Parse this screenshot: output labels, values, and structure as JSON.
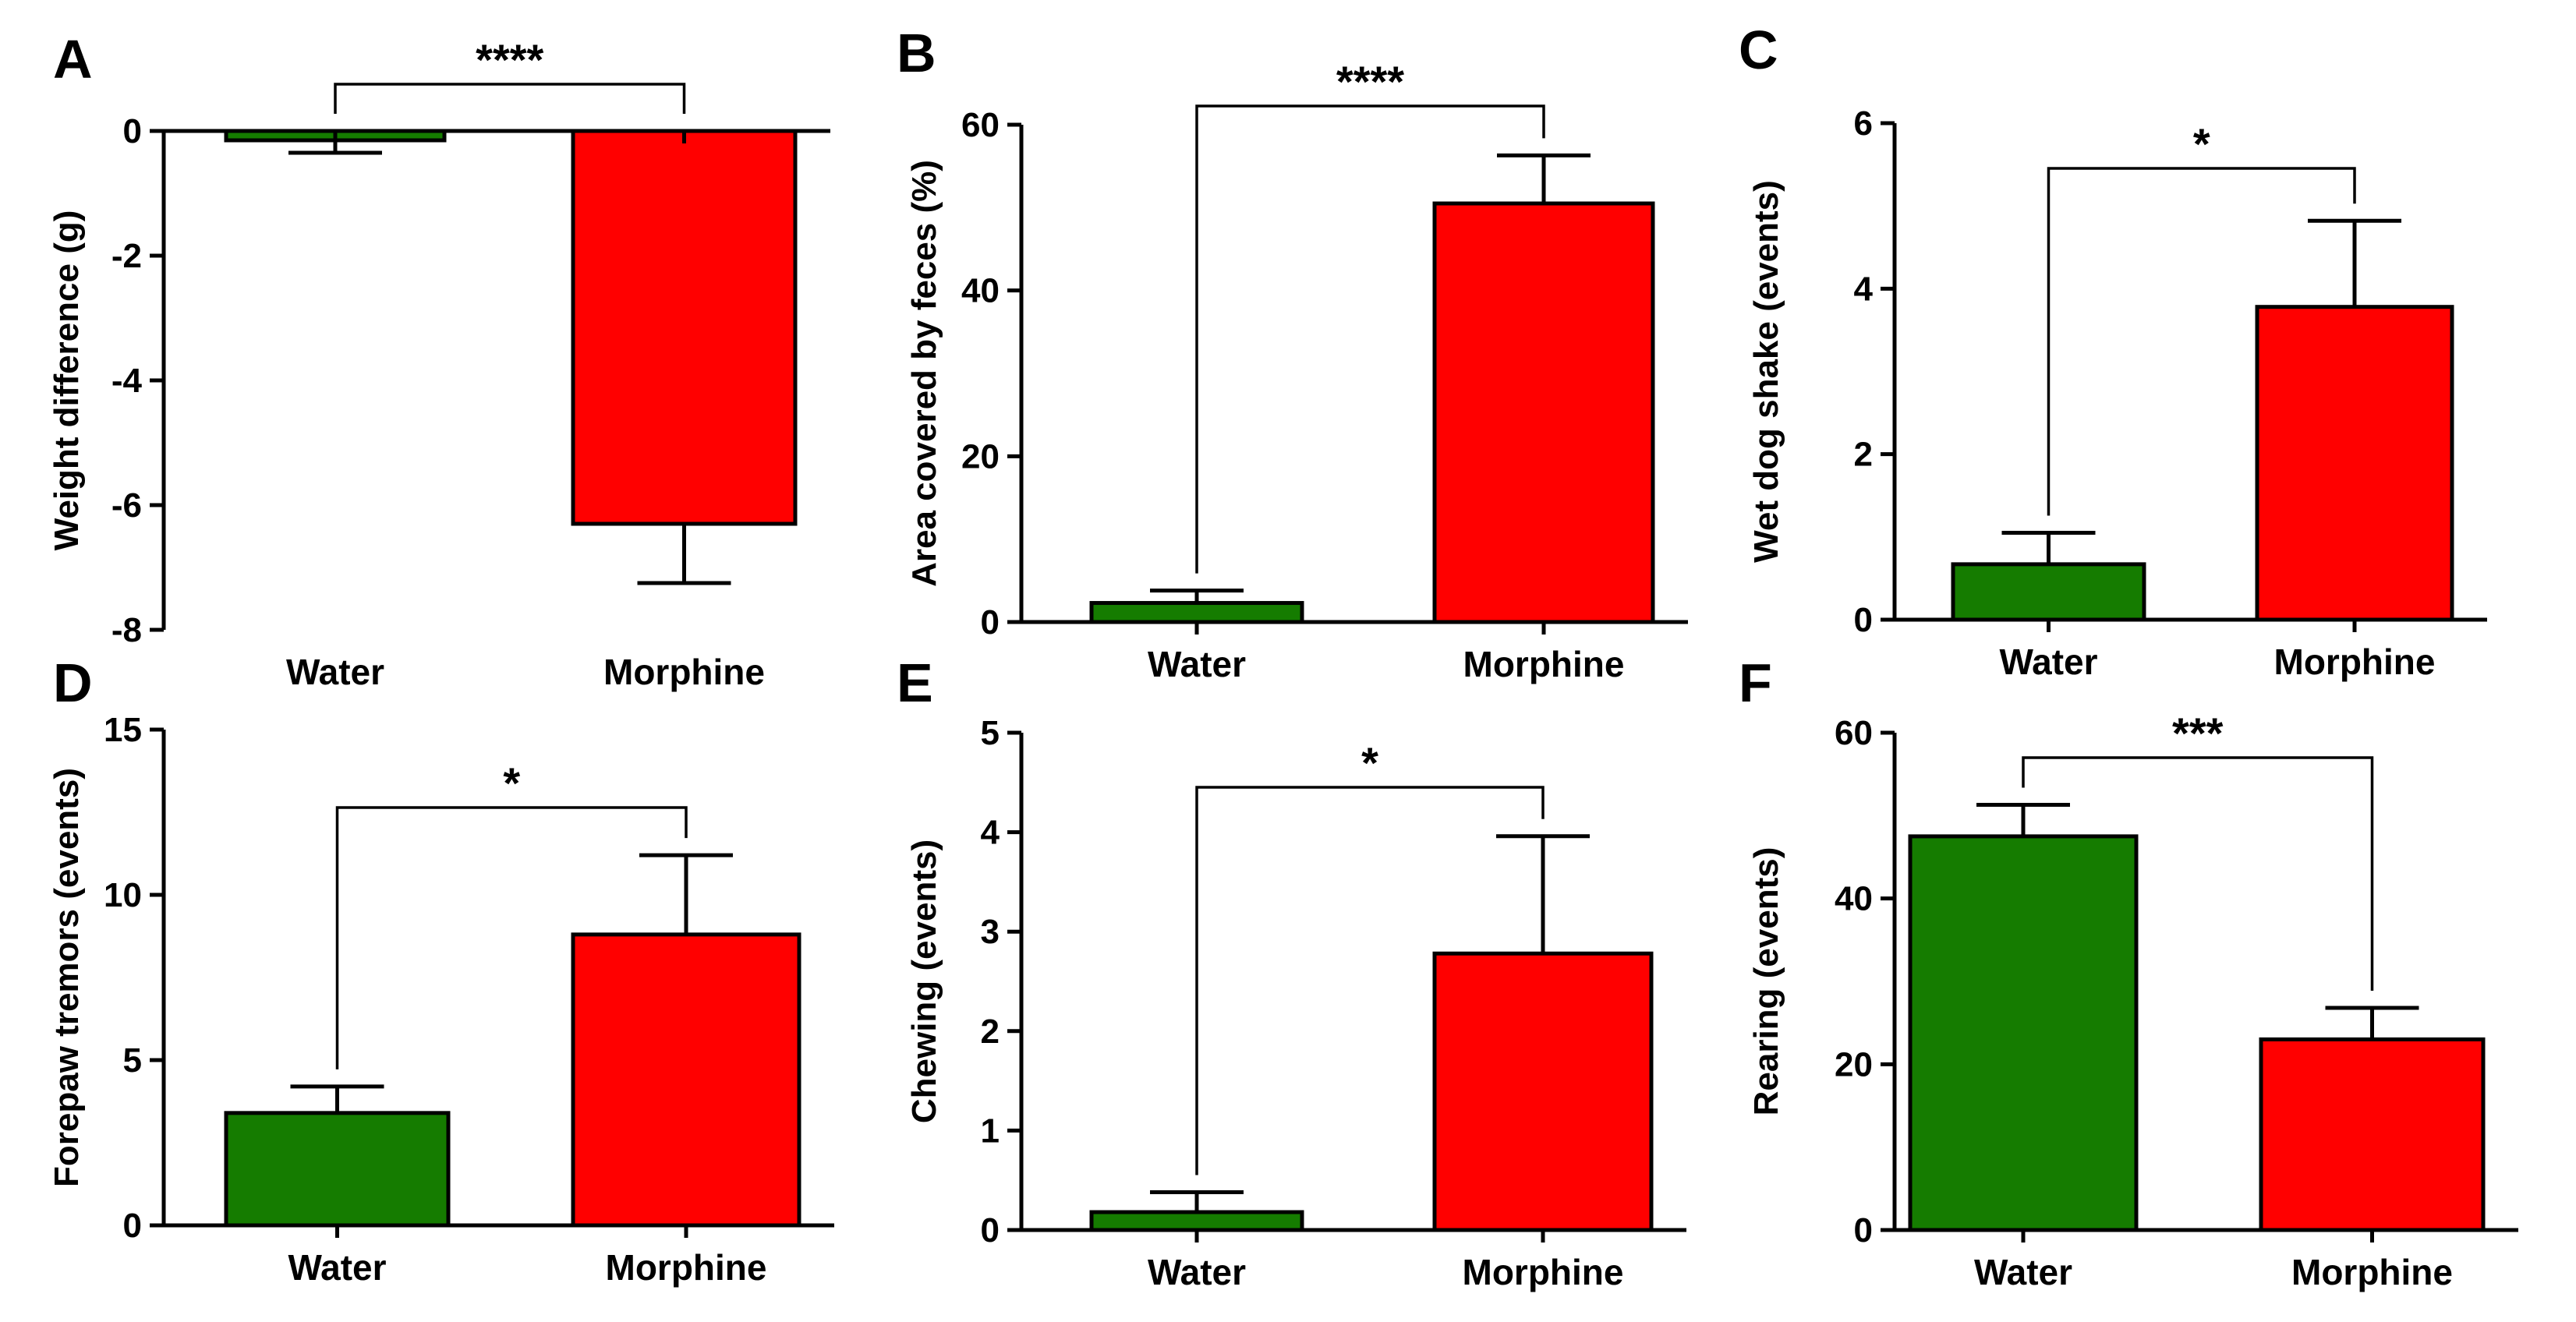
{
  "colors": {
    "water": "#157c00",
    "morphine": "#ff0000"
  },
  "chart_data": [
    {
      "panel": "A",
      "type": "bar",
      "categories": [
        "Water",
        "Morphine"
      ],
      "values": [
        -0.15,
        -6.3
      ],
      "errors": [
        0.2,
        0.95
      ],
      "ylabel": "Weight difference (g)",
      "ylim": [
        -8,
        0
      ],
      "yticks": [
        0,
        -2,
        -4,
        -6,
        -8
      ],
      "ytick_labels": [
        "0",
        "-2",
        "-4",
        "-6",
        "-8"
      ],
      "significance": "****"
    },
    {
      "panel": "B",
      "type": "bar",
      "categories": [
        "Water",
        "Morphine"
      ],
      "values": [
        2.3,
        50.5
      ],
      "errors": [
        1.5,
        5.8
      ],
      "ylabel": "Area covered by feces (%)",
      "ylim": [
        0,
        60
      ],
      "yticks": [
        0,
        20,
        40,
        60
      ],
      "ytick_labels": [
        "0",
        "20",
        "40",
        "60"
      ],
      "significance": "****"
    },
    {
      "panel": "C",
      "type": "bar",
      "categories": [
        "Water",
        "Morphine"
      ],
      "values": [
        0.67,
        3.78
      ],
      "errors": [
        0.38,
        1.04
      ],
      "ylabel": "Wet dog shake (events)",
      "ylim": [
        0,
        6
      ],
      "yticks": [
        0,
        2,
        4,
        6
      ],
      "ytick_labels": [
        "0",
        "2",
        "4",
        "6"
      ],
      "significance": "*"
    },
    {
      "panel": "D",
      "type": "bar",
      "categories": [
        "Water",
        "Morphine"
      ],
      "values": [
        3.4,
        8.8
      ],
      "errors": [
        0.8,
        2.4
      ],
      "ylabel": "Forepaw tremors (events)",
      "ylim": [
        0,
        15
      ],
      "yticks": [
        0,
        5,
        10,
        15
      ],
      "ytick_labels": [
        "0",
        "5",
        "10",
        "15"
      ],
      "significance": "*"
    },
    {
      "panel": "E",
      "type": "bar",
      "categories": [
        "Water",
        "Morphine"
      ],
      "values": [
        0.18,
        2.78
      ],
      "errors": [
        0.2,
        1.18
      ],
      "ylabel": "Chewing (events)",
      "ylim": [
        0,
        5
      ],
      "yticks": [
        0,
        1,
        2,
        3,
        4,
        5
      ],
      "ytick_labels": [
        "0",
        "1",
        "2",
        "3",
        "4",
        "5"
      ],
      "significance": "*"
    },
    {
      "panel": "F",
      "type": "bar",
      "categories": [
        "Water",
        "Morphine"
      ],
      "values": [
        47.5,
        23
      ],
      "errors": [
        3.8,
        3.8
      ],
      "ylabel": "Rearing (events)",
      "ylim": [
        0,
        60
      ],
      "yticks": [
        0,
        20,
        40,
        60
      ],
      "ytick_labels": [
        "0",
        "20",
        "40",
        "60"
      ],
      "significance": "***"
    }
  ]
}
